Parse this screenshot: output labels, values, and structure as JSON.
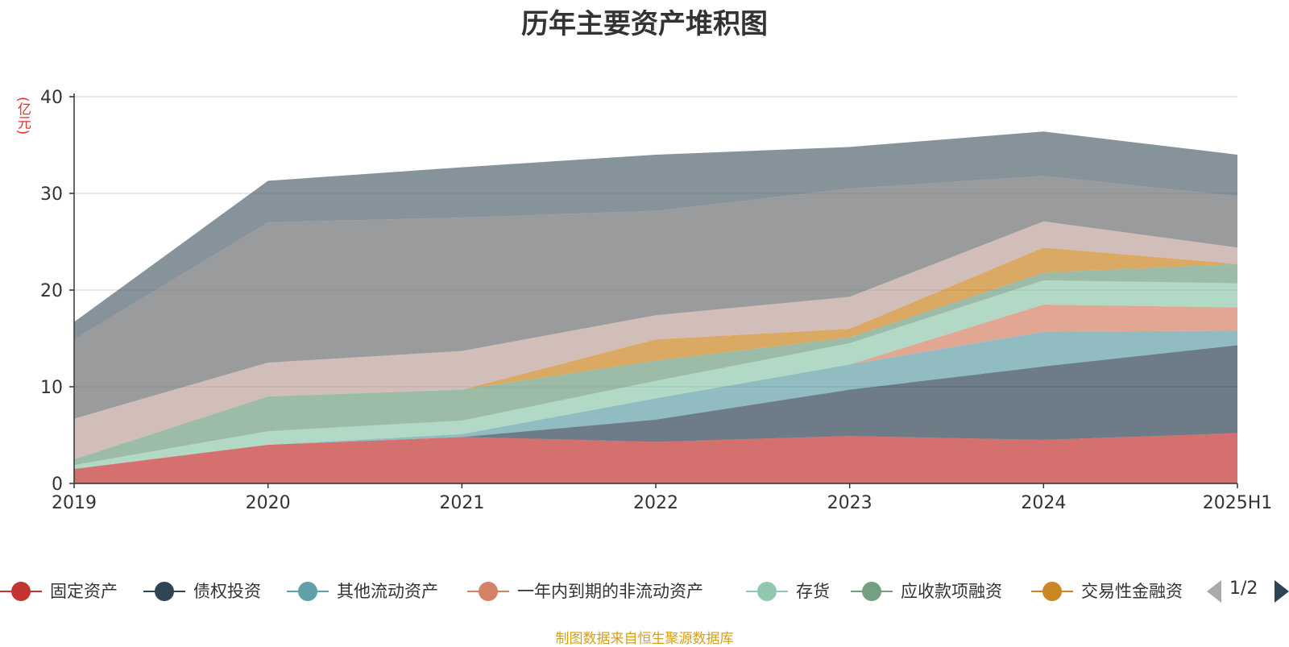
{
  "chart_data": {
    "type": "area",
    "stacked": true,
    "title": "历年主要资产堆积图",
    "ylabel": "(亿元)",
    "ylim": [
      0,
      40
    ],
    "yticks": [
      0,
      10,
      20,
      30,
      40
    ],
    "categories": [
      "2019",
      "2020",
      "2021",
      "2022",
      "2023",
      "2024",
      "2025H1"
    ],
    "grid": true,
    "legend_position": "bottom",
    "series": [
      {
        "name": "固定资产",
        "color": "#c23531",
        "values": [
          1.5,
          4.0,
          4.8,
          4.3,
          4.9,
          4.5,
          5.2
        ]
      },
      {
        "name": "债权投资",
        "color": "#2f4554",
        "values": [
          0.0,
          0.0,
          0.0,
          2.3,
          4.8,
          7.6,
          9.1
        ]
      },
      {
        "name": "其他流动资产",
        "color": "#61a0a8",
        "values": [
          0.0,
          0.0,
          0.3,
          2.2,
          2.6,
          3.6,
          1.5
        ]
      },
      {
        "name": "一年内到期的非流动资产",
        "color": "#d48265",
        "values": [
          0.0,
          0.0,
          0.0,
          0.0,
          0.0,
          2.8,
          2.4
        ]
      },
      {
        "name": "存货",
        "color": "#91c7ae",
        "values": [
          0.4,
          1.4,
          1.4,
          1.8,
          2.2,
          2.5,
          2.5
        ]
      },
      {
        "name": "应收款项融资",
        "color": "#749f83",
        "values": [
          0.6,
          3.6,
          3.2,
          2.1,
          0.6,
          0.8,
          2.0
        ]
      },
      {
        "name": "交易性金融资",
        "color": "#ca8622",
        "values": [
          0.0,
          0.0,
          0.0,
          2.2,
          0.9,
          2.6,
          0.0
        ]
      },
      {
        "name": "",
        "color": "#bda29a",
        "values": [
          4.2,
          3.5,
          4.0,
          2.5,
          3.3,
          2.7,
          1.7
        ]
      },
      {
        "name": "",
        "color": "#6e7074",
        "values": [
          8.2,
          14.5,
          13.8,
          10.8,
          11.2,
          4.7,
          5.3
        ]
      },
      {
        "name": "",
        "color": "#546570",
        "values": [
          1.8,
          4.3,
          5.2,
          5.8,
          4.3,
          4.6,
          4.3
        ]
      }
    ]
  },
  "legend": {
    "items": [
      "固定资产",
      "债权投资",
      "其他流动资产",
      "一年内到期的非流动资产",
      "存货",
      "应收款项融资",
      "交易性金融资"
    ],
    "page": "1/2"
  },
  "source_note": "制图数据来自恒生聚源数据库"
}
